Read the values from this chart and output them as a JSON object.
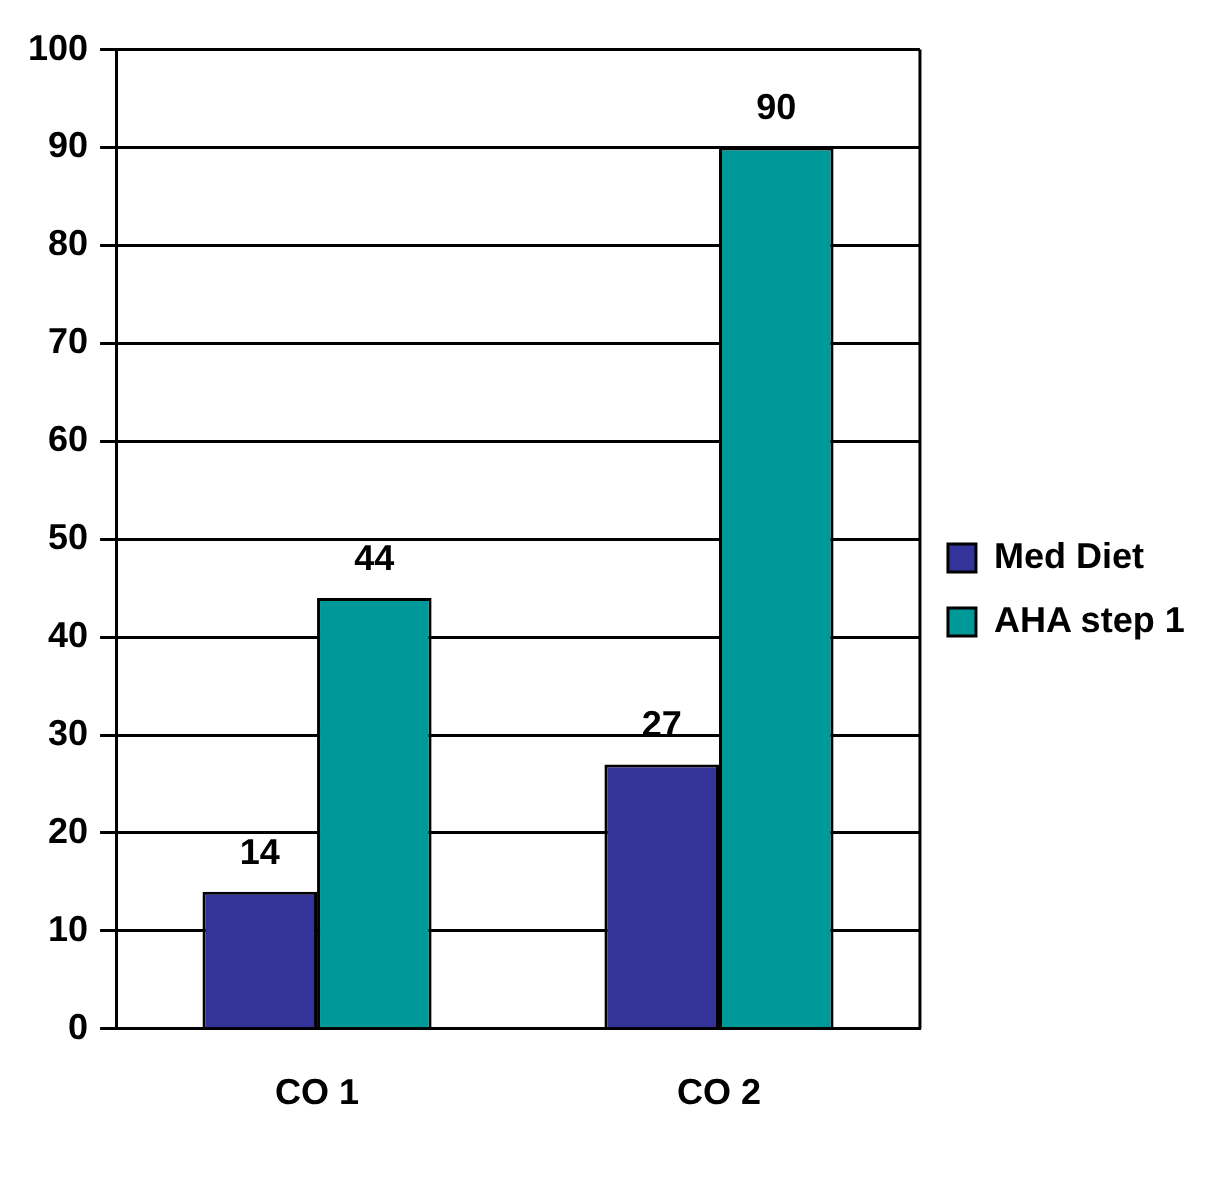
{
  "chart_data": {
    "type": "bar",
    "categories": [
      "CO 1",
      "CO 2"
    ],
    "series": [
      {
        "name": "Med Diet",
        "color": "#333399",
        "values": [
          14,
          27
        ]
      },
      {
        "name": "AHA step 1",
        "color": "#009999",
        "values": [
          44,
          90
        ]
      }
    ],
    "ylim": [
      0,
      100
    ],
    "yticks": [
      0,
      10,
      20,
      30,
      40,
      50,
      60,
      70,
      80,
      90,
      100
    ],
    "grid": "y",
    "legend": "right",
    "data_labels": true
  }
}
